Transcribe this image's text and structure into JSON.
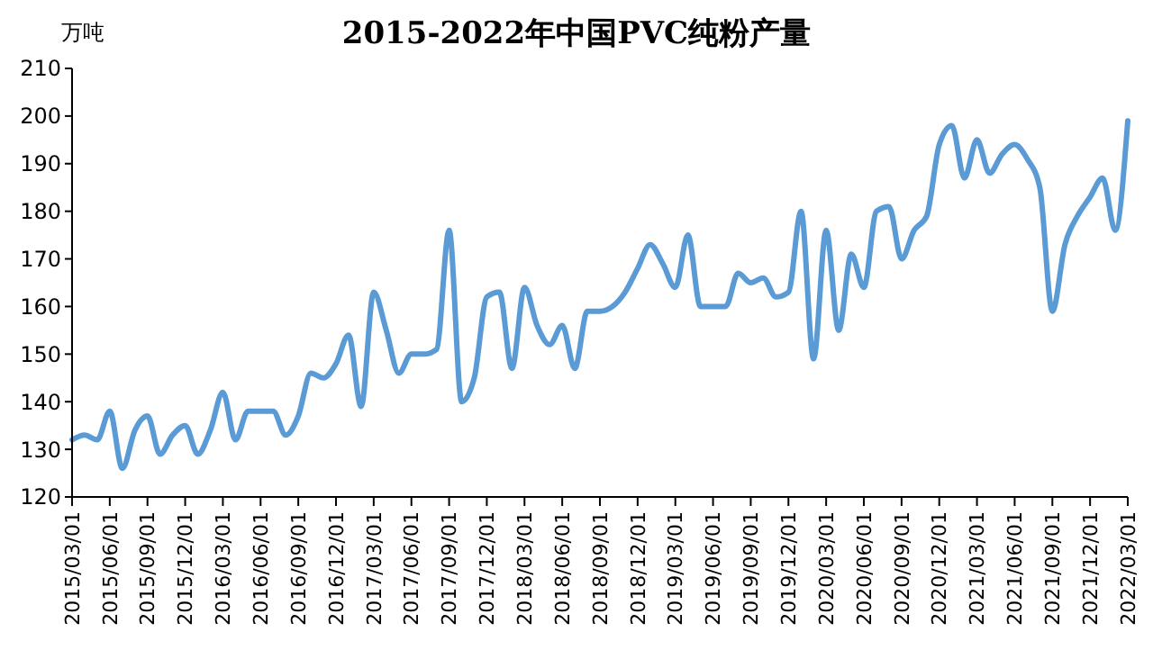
{
  "chart_data": {
    "type": "line",
    "title": "2015-2022年中国PVC纯粉产量",
    "ylabel": "万吨",
    "categories": [
      "2015/03/01",
      null,
      null,
      "2015/06/01",
      null,
      null,
      "2015/09/01",
      null,
      null,
      "2015/12/01",
      null,
      null,
      "2016/03/01",
      null,
      null,
      "2016/06/01",
      null,
      null,
      "2016/09/01",
      null,
      null,
      "2016/12/01",
      null,
      null,
      "2017/03/01",
      null,
      null,
      "2017/06/01",
      null,
      null,
      "2017/09/01",
      null,
      null,
      "2017/12/01",
      null,
      null,
      "2018/03/01",
      null,
      null,
      "2018/06/01",
      null,
      null,
      "2018/09/01",
      null,
      null,
      "2018/12/01",
      null,
      null,
      "2019/03/01",
      null,
      null,
      "2019/06/01",
      null,
      null,
      "2019/09/01",
      null,
      null,
      "2019/12/01",
      null,
      null,
      "2020/03/01",
      null,
      null,
      "2020/06/01",
      null,
      null,
      "2020/09/01",
      null,
      null,
      "2020/12/01",
      null,
      null,
      "2021/03/01",
      null,
      null,
      "2021/06/01",
      null,
      null,
      "2021/09/01",
      null,
      null,
      "2021/12/01",
      null,
      null,
      "2022/03/01"
    ],
    "series": [
      {
        "color": "#5b9bd5",
        "values": [
          132,
          133,
          132,
          138,
          126,
          134,
          137,
          129,
          133,
          135,
          129,
          134,
          142,
          132,
          138,
          138,
          138,
          133,
          137,
          146,
          145,
          148,
          154,
          139,
          163,
          155,
          146,
          150,
          150,
          151,
          176,
          140,
          145,
          162,
          163,
          147,
          164,
          156,
          152,
          156,
          147,
          159,
          159,
          160,
          163,
          168,
          173,
          169,
          164,
          175,
          160,
          160,
          160,
          167,
          165,
          166,
          162,
          163,
          180,
          149,
          176,
          155,
          171,
          164,
          180,
          181,
          170,
          176,
          179,
          194,
          198,
          187,
          195,
          188,
          192,
          194,
          191,
          185,
          159,
          173,
          179,
          183,
          187,
          176,
          199
        ]
      }
    ],
    "ylim": [
      120,
      210
    ],
    "yticks": [
      120,
      130,
      140,
      150,
      160,
      170,
      180,
      190,
      200,
      210
    ],
    "grid": false,
    "marker": "none",
    "line_style": "solid"
  }
}
